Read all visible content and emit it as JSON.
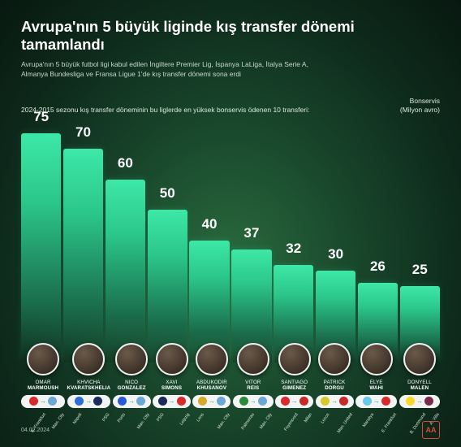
{
  "title": "Avrupa'nın 5 büyük liginde kış transfer dönemi tamamlandı",
  "subtitle": "Avrupa'nın 5 büyük futbol ligi kabul edilen İngiltere Premier Lig, İspanya LaLiga, İtalya Serie A, Almanya Bundesliga ve Fransa Ligue 1'de kış transfer dönemi sona erdi",
  "chart_label": "2024-2015 sezonu kış transfer döneminin bu liglerde en yüksek bonservis ödenen 10 transferi:",
  "unit_label_top": "Bonservis",
  "unit_label_bottom": "(Milyon avro)",
  "date": "04.02.2024",
  "logo": "AA",
  "chart": {
    "type": "bar",
    "ylim": [
      0,
      80
    ],
    "bar_gradient_top": "#3de8a7",
    "bar_gradient_mid": "#2bc78a",
    "bar_gradient_bottom": "#1a6b4a",
    "value_fontsize": 17,
    "axis_fontsize": 8.5,
    "background_gradient": [
      "#2a6b3f",
      "#1a4a2d",
      "#0e2b1c",
      "#081810"
    ]
  },
  "transfers": [
    {
      "value": 75,
      "first": "Omar",
      "last": "Marmoush",
      "from": "E. Frankfurt",
      "to": "Man. City",
      "from_color": "#d82a2a",
      "to_color": "#6aa8d8"
    },
    {
      "value": 70,
      "first": "Khvicha",
      "last": "Kvaratskhelia",
      "from": "Napoli",
      "to": "PSG",
      "from_color": "#2a6fd8",
      "to_color": "#1a2a5a"
    },
    {
      "value": 60,
      "first": "Nico",
      "last": "Gonzalez",
      "from": "Porto",
      "to": "Man. City",
      "from_color": "#2a5ad8",
      "to_color": "#6aa8d8"
    },
    {
      "value": 50,
      "first": "Xavi",
      "last": "Simons",
      "from": "PSG",
      "to": "Leipzig",
      "from_color": "#1a2a5a",
      "to_color": "#d82a2a"
    },
    {
      "value": 40,
      "first": "Abdukodir",
      "last": "Khusanov",
      "from": "Lens",
      "to": "Man. City",
      "from_color": "#d8a82a",
      "to_color": "#6aa8d8"
    },
    {
      "value": 37,
      "first": "Vitor",
      "last": "Reis",
      "from": "Palmeiras",
      "to": "Man. City",
      "from_color": "#2a8a3a",
      "to_color": "#6aa8d8"
    },
    {
      "value": 32,
      "first": "Santiago",
      "last": "Gimenez",
      "from": "Feyenoord",
      "to": "Milan",
      "from_color": "#d82a2a",
      "to_color": "#c82a2a"
    },
    {
      "value": 30,
      "first": "Patrick",
      "last": "Dorgu",
      "from": "Lecce",
      "to": "Man. United",
      "from_color": "#d8c82a",
      "to_color": "#c82a2a"
    },
    {
      "value": 26,
      "first": "Elye",
      "last": "Wahi",
      "from": "Marsilya",
      "to": "E. Frankfurt",
      "from_color": "#6ac8e8",
      "to_color": "#d82a2a"
    },
    {
      "value": 25,
      "first": "Donyell",
      "last": "Malen",
      "from": "B. Dortmund",
      "to": "A. Villa",
      "from_color": "#f8d82a",
      "to_color": "#7a2a4a"
    }
  ]
}
